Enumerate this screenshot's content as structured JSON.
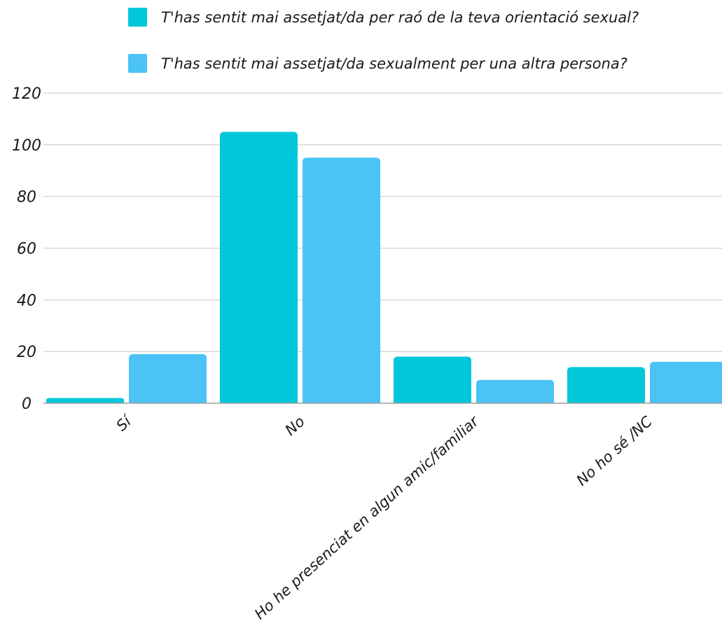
{
  "chart_data": {
    "type": "bar",
    "categories": [
      "Sí",
      "No",
      "Ho he presenciat en algun amic/familiar",
      "No ho sé /NC"
    ],
    "series": [
      {
        "name": "T'has sentit mai assetjat/da per raó de la teva orientació sexual?",
        "values": [
          2,
          105,
          18,
          14
        ],
        "color": "#00C7D9"
      },
      {
        "name": "T'has sentit mai assetjat/da sexualment per una altra persona?",
        "values": [
          19,
          95,
          9,
          16
        ],
        "color": "#4BC3F7"
      }
    ],
    "yticks": [
      "0",
      "20",
      "40",
      "60",
      "80",
      "100",
      "120"
    ],
    "ylim": [
      0,
      120
    ],
    "grid": true,
    "legend_position": "top-center",
    "axis_color": "#9e9e9e",
    "grid_color": "#c8c8c8"
  }
}
